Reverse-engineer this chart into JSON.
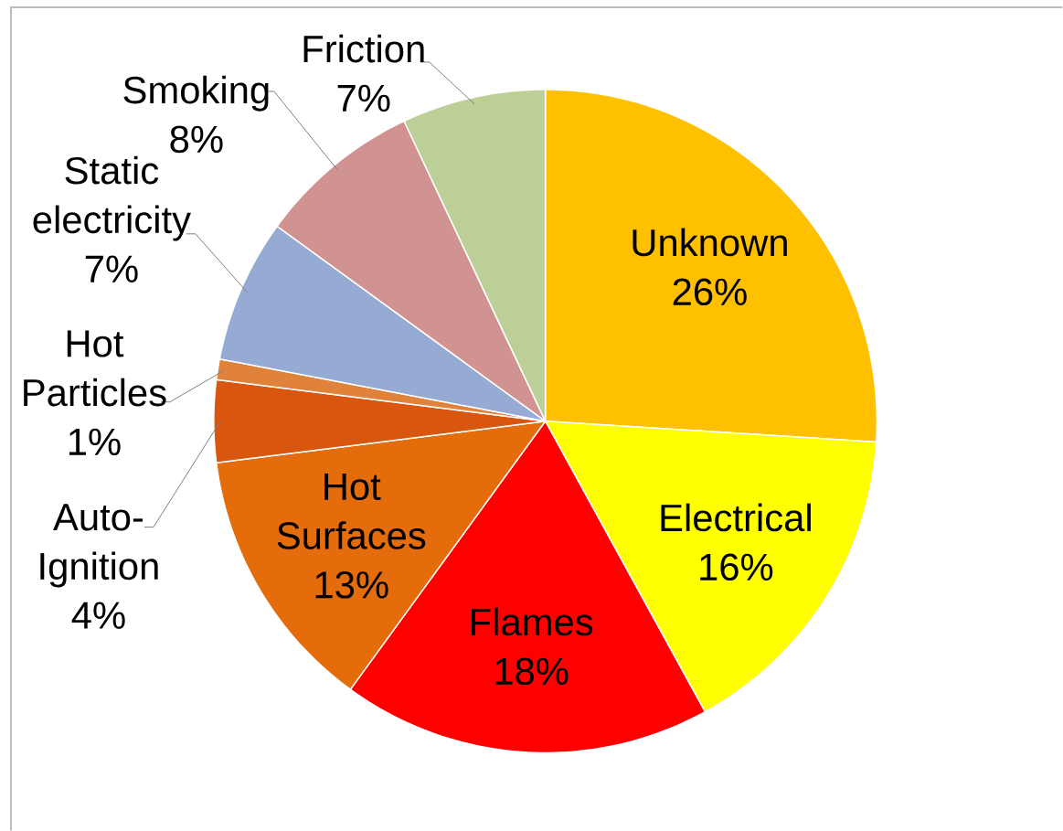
{
  "chart_data": {
    "type": "pie",
    "categories": [
      "Unknown",
      "Electrical",
      "Flames",
      "Hot Surfaces",
      "Auto-Ignition",
      "Hot Particles",
      "Static electricity",
      "Smoking",
      "Friction"
    ],
    "values": [
      26,
      16,
      18,
      13,
      4,
      1,
      7,
      8,
      7
    ],
    "colors": [
      "#ffc000",
      "#ffff00",
      "#ff0000",
      "#e46c0a",
      "#d9560f",
      "#e0823a",
      "#95abd3",
      "#d19292",
      "#bbcf97"
    ],
    "value_labels": [
      "26%",
      "16%",
      "18%",
      "13%",
      "4%",
      "1%",
      "7%",
      "8%",
      "7%"
    ]
  }
}
